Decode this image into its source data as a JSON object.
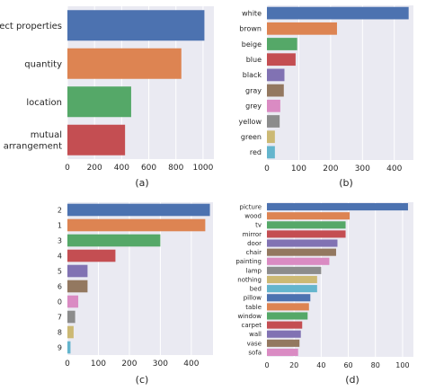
{
  "colors": {
    "panel_bg": "#eaeaf2",
    "grid": "#ffffff",
    "text": "#262626",
    "palette": [
      "#4c72b0",
      "#dd8452",
      "#55a868",
      "#c44e52",
      "#8172b3",
      "#937860",
      "#da8bc3",
      "#8c8c8c",
      "#ccb974",
      "#64b5cd"
    ]
  },
  "chart_data": [
    {
      "type": "bar",
      "orientation": "horizontal",
      "panel_label": "(a)",
      "categories": [
        "object properties",
        "quantity",
        "location",
        "mutual\narrangement"
      ],
      "values": [
        1010,
        840,
        470,
        425
      ],
      "xlim": [
        0,
        1080
      ],
      "xticks": [
        0,
        200,
        400,
        600,
        800,
        1000
      ],
      "grid": true
    },
    {
      "type": "bar",
      "orientation": "horizontal",
      "panel_label": "(b)",
      "categories": [
        "white",
        "brown",
        "beige",
        "blue",
        "black",
        "gray",
        "grey",
        "yellow",
        "green",
        "red"
      ],
      "values": [
        445,
        220,
        95,
        90,
        55,
        53,
        42,
        40,
        25,
        25
      ],
      "xlim": [
        0,
        460
      ],
      "xticks": [
        0,
        100,
        200,
        300,
        400
      ],
      "grid": true
    },
    {
      "type": "bar",
      "orientation": "horizontal",
      "panel_label": "(c)",
      "categories": [
        "2",
        "1",
        "3",
        "4",
        "5",
        "6",
        "0",
        "7",
        "8",
        "9"
      ],
      "values": [
        460,
        445,
        300,
        155,
        65,
        65,
        35,
        25,
        20,
        10
      ],
      "xlim": [
        0,
        470
      ],
      "xticks": [
        0,
        100,
        200,
        300,
        400
      ],
      "grid": true
    },
    {
      "type": "bar",
      "orientation": "horizontal",
      "panel_label": "(d)",
      "categories": [
        "picture",
        "wood",
        "tv",
        "mirror",
        "door",
        "chair",
        "painting",
        "lamp",
        "nothing",
        "bed",
        "pillow",
        "table",
        "window",
        "carpet",
        "wall",
        "vase",
        "sofa"
      ],
      "values": [
        104,
        61,
        58,
        58,
        52,
        51,
        46,
        40,
        37,
        37,
        32,
        31,
        30,
        26,
        25,
        24,
        23
      ],
      "xlim": [
        0,
        108
      ],
      "xticks": [
        0,
        20,
        40,
        60,
        80,
        100
      ],
      "grid": true
    }
  ]
}
